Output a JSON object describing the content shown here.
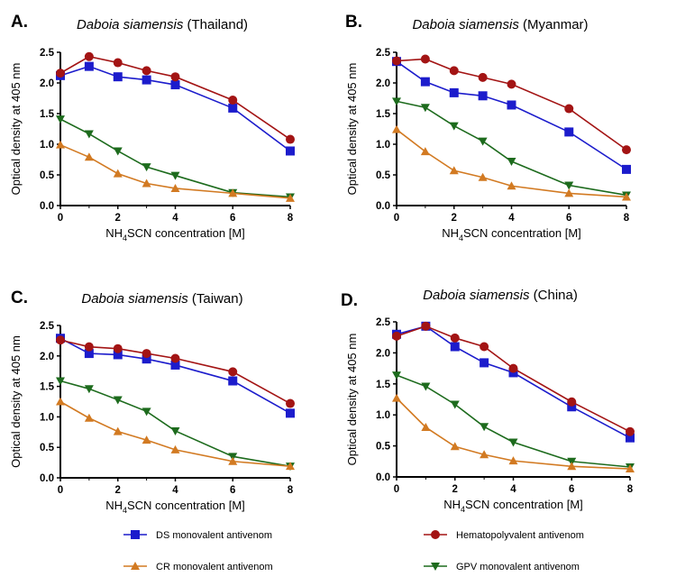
{
  "chart_data": {
    "type": "line",
    "x": [
      0,
      1,
      2,
      3,
      4,
      6,
      8
    ],
    "xlabel": {
      "pre": "NH",
      "sub": "4",
      "post": "SCN concentration [M]"
    },
    "ylabel": "Optical density at 405 nm",
    "xlim": [
      0,
      8
    ],
    "ylim": [
      0,
      2.5
    ],
    "xticks": [
      "0",
      "2",
      "4",
      "6",
      "8"
    ],
    "yticks": [
      "0.0",
      "0.5",
      "1.0",
      "1.5",
      "2.0",
      "2.5"
    ],
    "grid": false,
    "legend_position": "bottom",
    "series_styles": [
      {
        "key": "ds",
        "name": "DS monovalent antivenom",
        "color": "#1c1ccc",
        "marker": "square"
      },
      {
        "key": "hemato",
        "name": "Hematopolyvalent antivenom",
        "color": "#a31414",
        "marker": "circle"
      },
      {
        "key": "cr",
        "name": "CR monovalent antivenom",
        "color": "#d27a22",
        "marker": "triangle-up"
      },
      {
        "key": "gpv",
        "name": "GPV monovalent antivenom",
        "color": "#1d6b1d",
        "marker": "triangle-down"
      }
    ],
    "panels": [
      {
        "letter": "A.",
        "species": "Daboia siamensis",
        "origin": " (Thailand)",
        "series": {
          "ds": [
            2.12,
            2.27,
            2.1,
            2.05,
            1.97,
            1.59,
            0.89
          ],
          "hemato": [
            2.16,
            2.43,
            2.33,
            2.2,
            2.1,
            1.72,
            1.08
          ],
          "gpv": [
            1.41,
            1.17,
            0.89,
            0.63,
            0.49,
            0.21,
            0.14
          ],
          "cr": [
            0.99,
            0.79,
            0.52,
            0.36,
            0.28,
            0.2,
            0.12
          ]
        }
      },
      {
        "letter": "B.",
        "species": "Daboia siamensis",
        "origin": " (Myanmar)",
        "series": {
          "ds": [
            2.35,
            2.02,
            1.84,
            1.79,
            1.64,
            1.2,
            0.59
          ],
          "hemato": [
            2.36,
            2.39,
            2.2,
            2.09,
            1.98,
            1.58,
            0.91
          ],
          "gpv": [
            1.7,
            1.6,
            1.3,
            1.05,
            0.72,
            0.33,
            0.17
          ],
          "cr": [
            1.24,
            0.88,
            0.57,
            0.46,
            0.32,
            0.2,
            0.14
          ]
        }
      },
      {
        "letter": "C.",
        "species": "Daboia siamensis",
        "origin": " (Taiwan)",
        "series": {
          "ds": [
            2.29,
            2.04,
            2.02,
            1.95,
            1.85,
            1.59,
            1.06
          ],
          "hemato": [
            2.26,
            2.15,
            2.12,
            2.04,
            1.96,
            1.74,
            1.22
          ],
          "gpv": [
            1.59,
            1.46,
            1.28,
            1.09,
            0.77,
            0.35,
            0.19
          ],
          "cr": [
            1.25,
            0.98,
            0.76,
            0.62,
            0.46,
            0.27,
            0.19
          ]
        }
      },
      {
        "letter": "D.",
        "species": "Daboia siamensis",
        "origin": " (China)",
        "series": {
          "ds": [
            2.3,
            2.43,
            2.1,
            1.84,
            1.68,
            1.13,
            0.63
          ],
          "hemato": [
            2.27,
            2.43,
            2.24,
            2.1,
            1.75,
            1.21,
            0.73
          ],
          "gpv": [
            1.64,
            1.46,
            1.17,
            0.81,
            0.56,
            0.25,
            0.16
          ],
          "cr": [
            1.27,
            0.8,
            0.49,
            0.36,
            0.26,
            0.17,
            0.13
          ]
        }
      }
    ]
  }
}
